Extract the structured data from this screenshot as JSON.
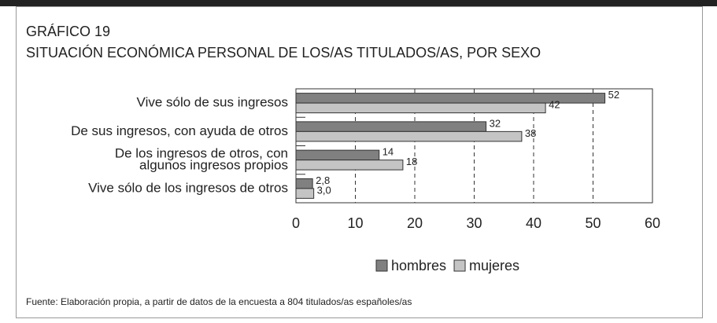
{
  "chart_data": {
    "type": "hbar",
    "title": "GRÁFICO 19",
    "subtitle": "SITUACIÓN ECONÓMICA PERSONAL DE LOS/AS TITULADOS/AS, POR SEXO",
    "categories": [
      [
        "Vive sólo de sus ingresos"
      ],
      [
        "De sus ingresos, con ayuda de otros"
      ],
      [
        "De los ingresos de otros, con",
        "algunos ingresos propios"
      ],
      [
        "Vive sólo de los ingresos de otros"
      ]
    ],
    "series": [
      {
        "name": "hombres",
        "color": "#808080",
        "values": [
          52,
          32,
          14,
          2.8
        ],
        "value_labels": [
          "52",
          "32",
          "14",
          "2,8"
        ]
      },
      {
        "name": "mujeres",
        "color": "#c4c4c4",
        "values": [
          42,
          38,
          18,
          3.0
        ],
        "value_labels": [
          "42",
          "38",
          "18",
          "3,0"
        ]
      }
    ],
    "xlim": [
      0,
      60
    ],
    "xticks": [
      0,
      10,
      20,
      30,
      40,
      50,
      60
    ],
    "grid": true,
    "legend": "bottom",
    "source": "Fuente: Elaboración propia, a partir de datos de la encuesta a 804 titulados/as españoles/as"
  }
}
